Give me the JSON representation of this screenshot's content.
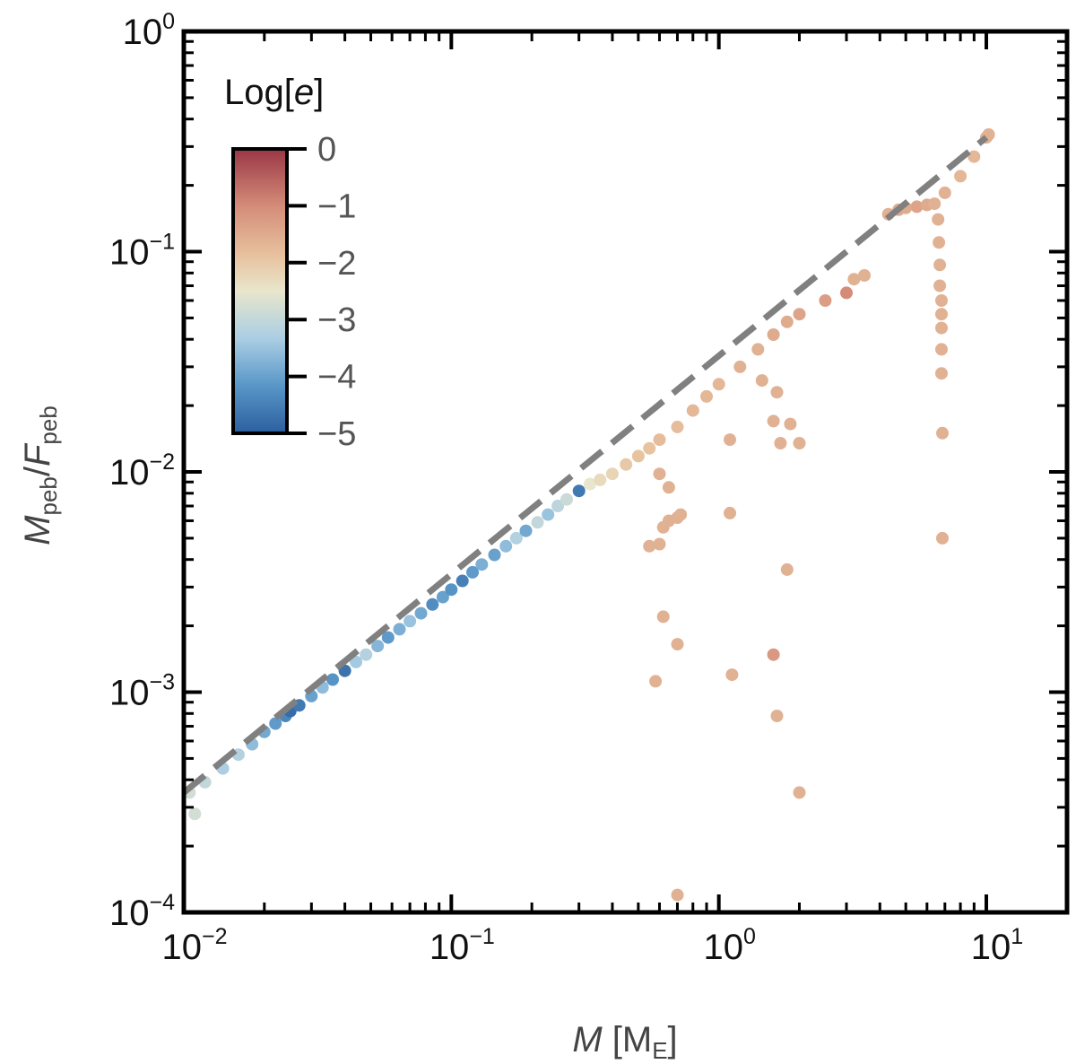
{
  "chart_data": {
    "type": "scatter",
    "xlabel": "M [M_E]",
    "xlabel_parts": {
      "var": "M",
      "open": " [M",
      "sub": "E",
      "close": "]"
    },
    "ylabel_parts": {
      "num": "M",
      "num_sub": "peb",
      "slash": "/",
      "den": "F",
      "den_sub": "peb"
    },
    "x_scale": "log",
    "y_scale": "log",
    "xlim": [
      0.01,
      20
    ],
    "ylim": [
      0.0001,
      1
    ],
    "x_ticks": [
      {
        "value": 0.01,
        "base": "10",
        "exp": "−2"
      },
      {
        "value": 0.1,
        "base": "10",
        "exp": "−1"
      },
      {
        "value": 1,
        "base": "10",
        "exp": "0"
      },
      {
        "value": 10,
        "base": "10",
        "exp": "1"
      }
    ],
    "y_ticks": [
      {
        "value": 0.0001,
        "base": "10",
        "exp": "−4"
      },
      {
        "value": 0.001,
        "base": "10",
        "exp": "−3"
      },
      {
        "value": 0.01,
        "base": "10",
        "exp": "−2"
      },
      {
        "value": 0.1,
        "base": "10",
        "exp": "−1"
      },
      {
        "value": 1,
        "base": "10",
        "exp": "0"
      }
    ],
    "colorbar": {
      "title_prefix": "Log[",
      "title_var": "e",
      "title_suffix": "]",
      "range": [
        -5,
        0
      ],
      "tick_values": [
        0,
        -1,
        -2,
        -3,
        -4,
        -5
      ],
      "tick_labels": [
        "0",
        "−1",
        "−2",
        "−3",
        "−4",
        "−5"
      ],
      "colormap_stops": [
        "#2b5f9e",
        "#5a97c8",
        "#a9cde3",
        "#e8e6cc",
        "#e8c3a0",
        "#d48c78",
        "#9a3646"
      ]
    },
    "reference_line": {
      "style": "dashed",
      "color": "#808080",
      "x": [
        0.01,
        10
      ],
      "y": [
        0.00035,
        0.33
      ]
    },
    "series": [
      {
        "name": "main-band",
        "points": [
          [
            0.0105,
            0.00035,
            -2.8
          ],
          [
            0.011,
            0.00028,
            -2.8
          ],
          [
            0.012,
            0.00039,
            -3.0
          ],
          [
            0.014,
            0.00045,
            -3.3
          ],
          [
            0.016,
            0.00052,
            -3.2
          ],
          [
            0.018,
            0.00058,
            -3.6
          ],
          [
            0.02,
            0.00066,
            -3.9
          ],
          [
            0.022,
            0.00072,
            -4.1
          ],
          [
            0.024,
            0.00078,
            -4.4
          ],
          [
            0.025,
            0.00082,
            -4.8
          ],
          [
            0.027,
            0.00087,
            -4.6
          ],
          [
            0.03,
            0.00096,
            -4.0
          ],
          [
            0.033,
            0.00105,
            -3.6
          ],
          [
            0.036,
            0.00114,
            -4.2
          ],
          [
            0.04,
            0.00125,
            -4.7
          ],
          [
            0.044,
            0.00137,
            -3.4
          ],
          [
            0.048,
            0.00148,
            -3.2
          ],
          [
            0.053,
            0.00162,
            -3.7
          ],
          [
            0.058,
            0.00177,
            -4.1
          ],
          [
            0.064,
            0.00193,
            -3.8
          ],
          [
            0.07,
            0.0021,
            -3.5
          ],
          [
            0.077,
            0.00228,
            -3.9
          ],
          [
            0.085,
            0.0025,
            -4.3
          ],
          [
            0.093,
            0.0027,
            -4.0
          ],
          [
            0.1,
            0.00292,
            -4.2
          ],
          [
            0.11,
            0.0032,
            -4.5
          ],
          [
            0.12,
            0.0035,
            -4.1
          ],
          [
            0.13,
            0.0038,
            -3.8
          ],
          [
            0.145,
            0.0042,
            -4.0
          ],
          [
            0.16,
            0.0046,
            -3.6
          ],
          [
            0.175,
            0.005,
            -3.2
          ],
          [
            0.19,
            0.0054,
            -3.9
          ],
          [
            0.21,
            0.0059,
            -3.0
          ],
          [
            0.23,
            0.0064,
            -3.5
          ],
          [
            0.25,
            0.007,
            -3.1
          ],
          [
            0.27,
            0.0075,
            -2.9
          ],
          [
            0.3,
            0.0082,
            -4.6
          ],
          [
            0.33,
            0.0088,
            -2.5
          ],
          [
            0.36,
            0.0092,
            -2.3
          ],
          [
            0.4,
            0.0098,
            -2.2
          ],
          [
            0.45,
            0.0108,
            -2.0
          ],
          [
            0.5,
            0.0118,
            -1.9
          ],
          [
            0.55,
            0.0128,
            -1.9
          ],
          [
            0.6,
            0.014,
            -1.8
          ],
          [
            0.7,
            0.016,
            -1.8
          ],
          [
            0.8,
            0.019,
            -1.7
          ],
          [
            0.9,
            0.022,
            -1.7
          ],
          [
            1.0,
            0.025,
            -1.7
          ],
          [
            1.2,
            0.03,
            -1.6
          ],
          [
            1.4,
            0.036,
            -1.6
          ],
          [
            1.6,
            0.042,
            -1.5
          ],
          [
            1.8,
            0.048,
            -1.5
          ],
          [
            2.0,
            0.052,
            -1.4
          ]
        ]
      },
      {
        "name": "outliers",
        "points": [
          [
            0.55,
            0.0046,
            -1.6
          ],
          [
            0.6,
            0.0047,
            -1.6
          ],
          [
            0.62,
            0.0056,
            -1.6
          ],
          [
            0.65,
            0.006,
            -1.6
          ],
          [
            0.7,
            0.0062,
            -1.6
          ],
          [
            0.72,
            0.0064,
            -1.6
          ],
          [
            0.62,
            0.0022,
            -1.6
          ],
          [
            0.7,
            0.00165,
            -1.6
          ],
          [
            0.58,
            0.00112,
            -1.6
          ],
          [
            0.7,
            0.00012,
            -1.6
          ],
          [
            1.1,
            0.0065,
            -1.6
          ],
          [
            1.12,
            0.0012,
            -1.6
          ],
          [
            1.1,
            0.014,
            -1.6
          ],
          [
            1.6,
            0.00148,
            -1.2
          ],
          [
            1.65,
            0.00078,
            -1.6
          ],
          [
            1.8,
            0.0036,
            -1.6
          ],
          [
            2.0,
            0.00035,
            -1.6
          ],
          [
            1.7,
            0.0135,
            -1.6
          ],
          [
            2.0,
            0.0135,
            -1.6
          ],
          [
            1.85,
            0.0165,
            -1.6
          ],
          [
            1.6,
            0.017,
            -1.6
          ],
          [
            1.45,
            0.026,
            -1.6
          ],
          [
            1.65,
            0.023,
            -1.6
          ],
          [
            2.5,
            0.06,
            -1.3
          ],
          [
            3.0,
            0.065,
            -1.0
          ],
          [
            3.2,
            0.075,
            -1.6
          ],
          [
            3.5,
            0.078,
            -1.6
          ],
          [
            0.65,
            0.0085,
            -1.6
          ],
          [
            0.6,
            0.0098,
            -1.6
          ]
        ]
      },
      {
        "name": "upper-branch",
        "points": [
          [
            4.3,
            0.148,
            -1.6
          ],
          [
            4.7,
            0.155,
            -1.5
          ],
          [
            5.0,
            0.158,
            -1.5
          ],
          [
            5.5,
            0.16,
            -1.4
          ],
          [
            6.0,
            0.163,
            -1.5
          ],
          [
            6.4,
            0.165,
            -1.6
          ],
          [
            6.6,
            0.14,
            -1.6
          ],
          [
            6.65,
            0.11,
            -1.6
          ],
          [
            6.7,
            0.087,
            -1.6
          ],
          [
            6.7,
            0.07,
            -1.6
          ],
          [
            6.8,
            0.06,
            -1.6
          ],
          [
            6.8,
            0.052,
            -1.6
          ],
          [
            6.8,
            0.045,
            -1.6
          ],
          [
            6.8,
            0.036,
            -1.6
          ],
          [
            6.8,
            0.028,
            -1.6
          ],
          [
            6.85,
            0.015,
            -1.6
          ],
          [
            6.85,
            0.005,
            -1.6
          ],
          [
            7.0,
            0.185,
            -1.6
          ],
          [
            8.0,
            0.22,
            -1.7
          ],
          [
            9.0,
            0.27,
            -1.7
          ],
          [
            10.0,
            0.33,
            -1.6
          ],
          [
            10.2,
            0.34,
            -1.6
          ]
        ]
      }
    ]
  }
}
